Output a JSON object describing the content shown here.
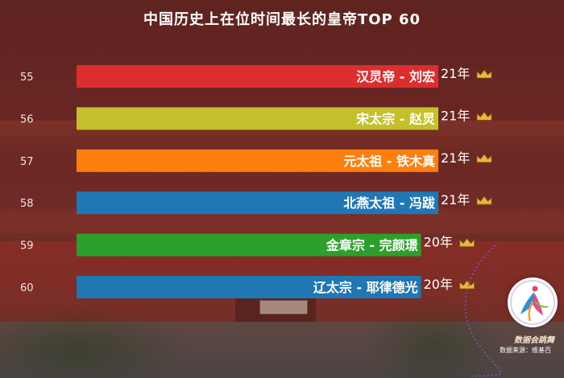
{
  "title": "中国历史上在位时间最长的皇帝TOP 60",
  "brand": "数据会跳舞",
  "source": "数据来源：维基百",
  "icons": {
    "crown": "crown-icon",
    "logo": "dancer-logo-icon"
  },
  "colors": {
    "background": "#5a2422",
    "bars": [
      "#dc2e2f",
      "#c3c02c",
      "#fe7f0e",
      "#1f77b4",
      "#2ca02c",
      "#1f77b4"
    ],
    "crown": "#e8b83a"
  },
  "chart_data": {
    "type": "bar",
    "orientation": "horizontal",
    "title": "中国历史上在位时间最长的皇帝TOP 60",
    "ranks": [
      "55",
      "56",
      "57",
      "58",
      "59",
      "60"
    ],
    "categories": [
      "汉灵帝 - 刘宏",
      "宋太宗 - 赵炅",
      "元太祖 - 铁木真",
      "北燕太祖 - 冯跋",
      "金章宗 - 完颜璟",
      "辽太宗 - 耶律德光"
    ],
    "values": [
      21,
      21,
      21,
      21,
      20,
      20
    ],
    "value_labels": [
      "21年",
      "21年",
      "21年",
      "21年",
      "20年",
      "20年"
    ],
    "unit": "年"
  }
}
